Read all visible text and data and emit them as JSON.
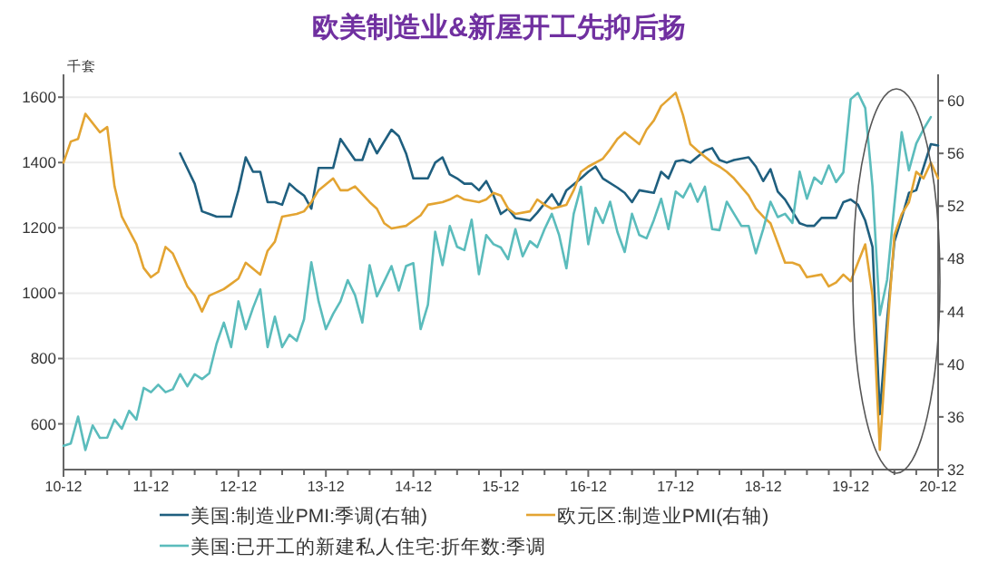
{
  "chart_data": {
    "type": "line",
    "title": "欧美制造业&新屋开工先抑后扬",
    "ylabel": "千套",
    "x": [
      "2010-12",
      "2011-01",
      "2011-02",
      "2011-03",
      "2011-04",
      "2011-05",
      "2011-06",
      "2011-07",
      "2011-08",
      "2011-09",
      "2011-10",
      "2011-11",
      "2011-12",
      "2012-01",
      "2012-02",
      "2012-03",
      "2012-04",
      "2012-05",
      "2012-06",
      "2012-07",
      "2012-08",
      "2012-09",
      "2012-10",
      "2012-11",
      "2012-12",
      "2013-01",
      "2013-02",
      "2013-03",
      "2013-04",
      "2013-05",
      "2013-06",
      "2013-07",
      "2013-08",
      "2013-09",
      "2013-10",
      "2013-11",
      "2013-12",
      "2014-01",
      "2014-02",
      "2014-03",
      "2014-04",
      "2014-05",
      "2014-06",
      "2014-07",
      "2014-08",
      "2014-09",
      "2014-10",
      "2014-11",
      "2014-12",
      "2015-01",
      "2015-02",
      "2015-03",
      "2015-04",
      "2015-05",
      "2015-06",
      "2015-07",
      "2015-08",
      "2015-09",
      "2015-10",
      "2015-11",
      "2015-12",
      "2016-01",
      "2016-02",
      "2016-03",
      "2016-04",
      "2016-05",
      "2016-06",
      "2016-07",
      "2016-08",
      "2016-09",
      "2016-10",
      "2016-11",
      "2016-12",
      "2017-01",
      "2017-02",
      "2017-03",
      "2017-04",
      "2017-05",
      "2017-06",
      "2017-07",
      "2017-08",
      "2017-09",
      "2017-10",
      "2017-11",
      "2017-12",
      "2018-01",
      "2018-02",
      "2018-03",
      "2018-04",
      "2018-05",
      "2018-06",
      "2018-07",
      "2018-08",
      "2018-09",
      "2018-10",
      "2018-11",
      "2018-12",
      "2019-01",
      "2019-02",
      "2019-03",
      "2019-04",
      "2019-05",
      "2019-06",
      "2019-07",
      "2019-08",
      "2019-09",
      "2019-10",
      "2019-11",
      "2019-12",
      "2020-01",
      "2020-02",
      "2020-03",
      "2020-04",
      "2020-05",
      "2020-06",
      "2020-07",
      "2020-08",
      "2020-09",
      "2020-10",
      "2020-11"
    ],
    "series": [
      {
        "name": "美国:制造业PMI:季调(右轴)",
        "color": "#1f5f7f",
        "axis": "y2",
        "x": [
          "2012-04",
          "2012-06",
          "2012-07",
          "2012-08",
          "2012-09",
          "2012-11",
          "2012-12",
          "2013-01",
          "2013-02",
          "2013-03",
          "2013-04",
          "2013-05",
          "2013-06",
          "2013-07",
          "2013-08",
          "2013-09",
          "2013-10",
          "2013-11",
          "2014-01",
          "2014-02",
          "2014-04",
          "2014-05",
          "2014-06",
          "2014-07",
          "2014-09",
          "2014-10",
          "2014-11",
          "2014-12",
          "2015-02",
          "2015-03",
          "2015-04",
          "2015-05",
          "2015-06",
          "2015-07",
          "2015-08",
          "2015-09",
          "2015-10",
          "2015-11",
          "2015-12",
          "2016-01",
          "2016-02",
          "2016-04",
          "2016-05",
          "2016-07",
          "2016-08",
          "2016-09",
          "2016-11",
          "2016-12",
          "2017-01",
          "2017-02",
          "2017-04",
          "2017-05",
          "2017-06",
          "2017-07",
          "2017-09",
          "2017-10",
          "2017-11",
          "2017-12",
          "2018-01",
          "2018-02",
          "2018-04",
          "2018-05",
          "2018-06",
          "2018-07",
          "2018-08",
          "2018-10",
          "2018-11",
          "2018-12",
          "2019-01",
          "2019-02",
          "2019-03",
          "2019-05",
          "2019-06",
          "2019-07",
          "2019-08",
          "2019-10",
          "2019-11",
          "2019-12",
          "2020-01",
          "2020-02",
          "2020-03",
          "2020-04",
          "2020-05",
          "2020-06",
          "2020-07",
          "2020-08",
          "2020-09",
          "2020-11",
          "2020-12"
        ],
        "values": [
          56.0,
          53.7,
          51.6,
          51.4,
          51.2,
          51.2,
          53.2,
          55.7,
          54.6,
          54.6,
          52.3,
          52.3,
          52.1,
          53.7,
          53.2,
          52.8,
          51.8,
          54.9,
          54.9,
          57.1,
          55.5,
          55.5,
          57.1,
          56.0,
          57.8,
          57.3,
          56.0,
          54.1,
          54.1,
          55.3,
          55.7,
          54.4,
          54.1,
          53.7,
          53.7,
          53.2,
          53.9,
          52.8,
          51.4,
          51.8,
          51.1,
          50.9,
          51.5,
          52.9,
          52.0,
          53.2,
          54.1,
          54.6,
          55.0,
          54.1,
          53.4,
          53.0,
          52.3,
          53.2,
          53.0,
          54.6,
          54.1,
          55.4,
          55.5,
          55.3,
          56.2,
          56.4,
          55.5,
          55.3,
          55.5,
          55.7,
          55.0,
          53.9,
          54.8,
          53.1,
          52.5,
          50.7,
          50.5,
          50.5,
          51.1,
          51.1,
          52.3,
          52.5,
          52.1,
          50.9,
          48.9,
          36.2,
          43.3,
          49.3,
          51.1,
          53.0,
          53.2,
          56.7,
          56.6
        ]
      },
      {
        "name": "欧元区:制造业PMI(右轴)",
        "color": "#e3a432",
        "axis": "y2",
        "x": [
          "2010-12",
          "2011-01",
          "2011-02",
          "2011-03",
          "2011-05",
          "2011-06",
          "2011-07",
          "2011-08",
          "2011-10",
          "2011-11",
          "2011-12",
          "2012-01",
          "2012-02",
          "2012-03",
          "2012-05",
          "2012-06",
          "2012-07",
          "2012-08",
          "2012-10",
          "2012-11",
          "2012-12",
          "2013-01",
          "2013-03",
          "2013-04",
          "2013-05",
          "2013-06",
          "2013-08",
          "2013-09",
          "2013-10",
          "2013-11",
          "2014-01",
          "2014-02",
          "2014-03",
          "2014-04",
          "2014-06",
          "2014-07",
          "2014-08",
          "2014-09",
          "2014-11",
          "2014-12",
          "2015-01",
          "2015-02",
          "2015-04",
          "2015-05",
          "2015-06",
          "2015-07",
          "2015-09",
          "2015-10",
          "2015-11",
          "2015-12",
          "2016-01",
          "2016-02",
          "2016-04",
          "2016-05",
          "2016-06",
          "2016-07",
          "2016-09",
          "2016-10",
          "2016-11",
          "2016-12",
          "2017-02",
          "2017-03",
          "2017-04",
          "2017-05",
          "2017-07",
          "2017-08",
          "2017-09",
          "2017-10",
          "2017-12",
          "2018-01",
          "2018-02",
          "2018-03",
          "2018-05",
          "2018-06",
          "2018-07",
          "2018-08",
          "2018-10",
          "2018-11",
          "2018-12",
          "2019-01",
          "2019-03",
          "2019-04",
          "2019-05",
          "2019-06",
          "2019-08",
          "2019-09",
          "2019-10",
          "2019-11",
          "2019-12",
          "2020-01",
          "2020-02",
          "2020-03",
          "2020-04",
          "2020-05",
          "2020-06",
          "2020-07",
          "2020-08",
          "2020-09",
          "2020-10",
          "2020-11",
          "2020-12"
        ],
        "values": [
          55.3,
          56.9,
          57.1,
          59.0,
          57.6,
          58.0,
          53.5,
          51.2,
          49.1,
          47.3,
          46.6,
          47.0,
          48.9,
          48.4,
          45.9,
          45.2,
          44.0,
          45.2,
          45.7,
          46.1,
          46.5,
          47.7,
          46.8,
          48.6,
          49.3,
          51.2,
          51.4,
          51.6,
          52.3,
          53.2,
          54.1,
          53.2,
          53.2,
          53.5,
          52.3,
          51.8,
          50.7,
          50.3,
          50.5,
          50.9,
          51.3,
          52.1,
          52.3,
          52.5,
          52.8,
          52.5,
          52.3,
          52.5,
          53.0,
          52.8,
          51.8,
          51.4,
          51.6,
          52.5,
          52.1,
          51.8,
          52.1,
          53.2,
          54.6,
          55.0,
          55.6,
          56.3,
          57.1,
          57.6,
          56.7,
          57.8,
          58.5,
          59.6,
          60.6,
          58.9,
          56.7,
          56.2,
          55.3,
          55.0,
          54.6,
          54.1,
          52.8,
          51.8,
          51.2,
          50.7,
          47.7,
          47.7,
          47.5,
          46.6,
          46.8,
          45.9,
          46.2,
          46.8,
          46.3,
          47.7,
          49.1,
          45.2,
          33.5,
          42.2,
          49.8,
          51.4,
          52.3,
          54.6,
          54.1,
          55.3,
          54.1
        ]
      },
      {
        "name": "美国:已开工的新建私人住宅:折年数:季调",
        "color": "#5bbcbc",
        "values": [
          533,
          540,
          622,
          520,
          595,
          557,
          558,
          613,
          585,
          640,
          613,
          710,
          697,
          720,
          697,
          706,
          752,
          715,
          752,
          737,
          755,
          845,
          910,
          835,
          975,
          890,
          955,
          1012,
          835,
          928,
          835,
          873,
          854,
          920,
          1095,
          975,
          890,
          937,
          975,
          1040,
          994,
          910,
          1086,
          990,
          1036,
          1083,
          1008,
          1083,
          1092,
          890,
          965,
          1188,
          1086,
          1206,
          1142,
          1132,
          1225,
          1058,
          1178,
          1150,
          1140,
          1104,
          1196,
          1113,
          1159,
          1141,
          1196,
          1243,
          1178,
          1076,
          1243,
          1326,
          1150,
          1261,
          1215,
          1280,
          1187,
          1126,
          1243,
          1178,
          1168,
          1224,
          1289,
          1196,
          1311,
          1293,
          1335,
          1280,
          1326,
          1196,
          1193,
          1280,
          1243,
          1206,
          1206,
          1122,
          1196,
          1280,
          1233,
          1243,
          1215,
          1372,
          1289,
          1354,
          1335,
          1391,
          1340,
          1370,
          1594,
          1613,
          1567,
          1326,
          933,
          1041,
          1270,
          1493,
          1376,
          1458,
          1502,
          1539
        ]
      }
    ],
    "xlim": [
      "2010-12",
      "2020-12"
    ],
    "xticks": [
      {
        "value": "2010-12",
        "label": "10-12"
      },
      {
        "value": "2011-03",
        "label": null
      },
      {
        "value": "2011-06",
        "label": null
      },
      {
        "value": "2011-09",
        "label": null
      },
      {
        "value": "2011-12",
        "label": "11-12"
      },
      {
        "value": "2012-03",
        "label": null
      },
      {
        "value": "2012-06",
        "label": null
      },
      {
        "value": "2012-09",
        "label": null
      },
      {
        "value": "2012-12",
        "label": "12-12"
      },
      {
        "value": "2013-03",
        "label": null
      },
      {
        "value": "2013-06",
        "label": null
      },
      {
        "value": "2013-09",
        "label": null
      },
      {
        "value": "2013-12",
        "label": "13-12"
      },
      {
        "value": "2014-03",
        "label": null
      },
      {
        "value": "2014-06",
        "label": null
      },
      {
        "value": "2014-09",
        "label": null
      },
      {
        "value": "2014-12",
        "label": "14-12"
      },
      {
        "value": "2015-03",
        "label": null
      },
      {
        "value": "2015-06",
        "label": null
      },
      {
        "value": "2015-09",
        "label": null
      },
      {
        "value": "2015-12",
        "label": "15-12"
      },
      {
        "value": "2016-03",
        "label": null
      },
      {
        "value": "2016-06",
        "label": null
      },
      {
        "value": "2016-09",
        "label": null
      },
      {
        "value": "2016-12",
        "label": "16-12"
      },
      {
        "value": "2017-03",
        "label": null
      },
      {
        "value": "2017-06",
        "label": null
      },
      {
        "value": "2017-09",
        "label": null
      },
      {
        "value": "2017-12",
        "label": "17-12"
      },
      {
        "value": "2018-03",
        "label": null
      },
      {
        "value": "2018-06",
        "label": null
      },
      {
        "value": "2018-09",
        "label": null
      },
      {
        "value": "2018-12",
        "label": "18-12"
      },
      {
        "value": "2019-03",
        "label": null
      },
      {
        "value": "2019-06",
        "label": null
      },
      {
        "value": "2019-09",
        "label": null
      },
      {
        "value": "2019-12",
        "label": "19-12"
      },
      {
        "value": "2020-03",
        "label": null
      },
      {
        "value": "2020-06",
        "label": null
      },
      {
        "value": "2020-09",
        "label": null
      },
      {
        "value": "2020-12",
        "label": "20-12"
      }
    ],
    "ylim": [
      460,
      1670
    ],
    "yticks": [
      600,
      800,
      1000,
      1200,
      1400,
      1600
    ],
    "y2lim": [
      32,
      62
    ],
    "y2ticks": [
      32,
      36,
      40,
      44,
      48,
      52,
      56,
      60
    ],
    "grid": "y",
    "legend": "bottom",
    "line_style": "solid"
  }
}
